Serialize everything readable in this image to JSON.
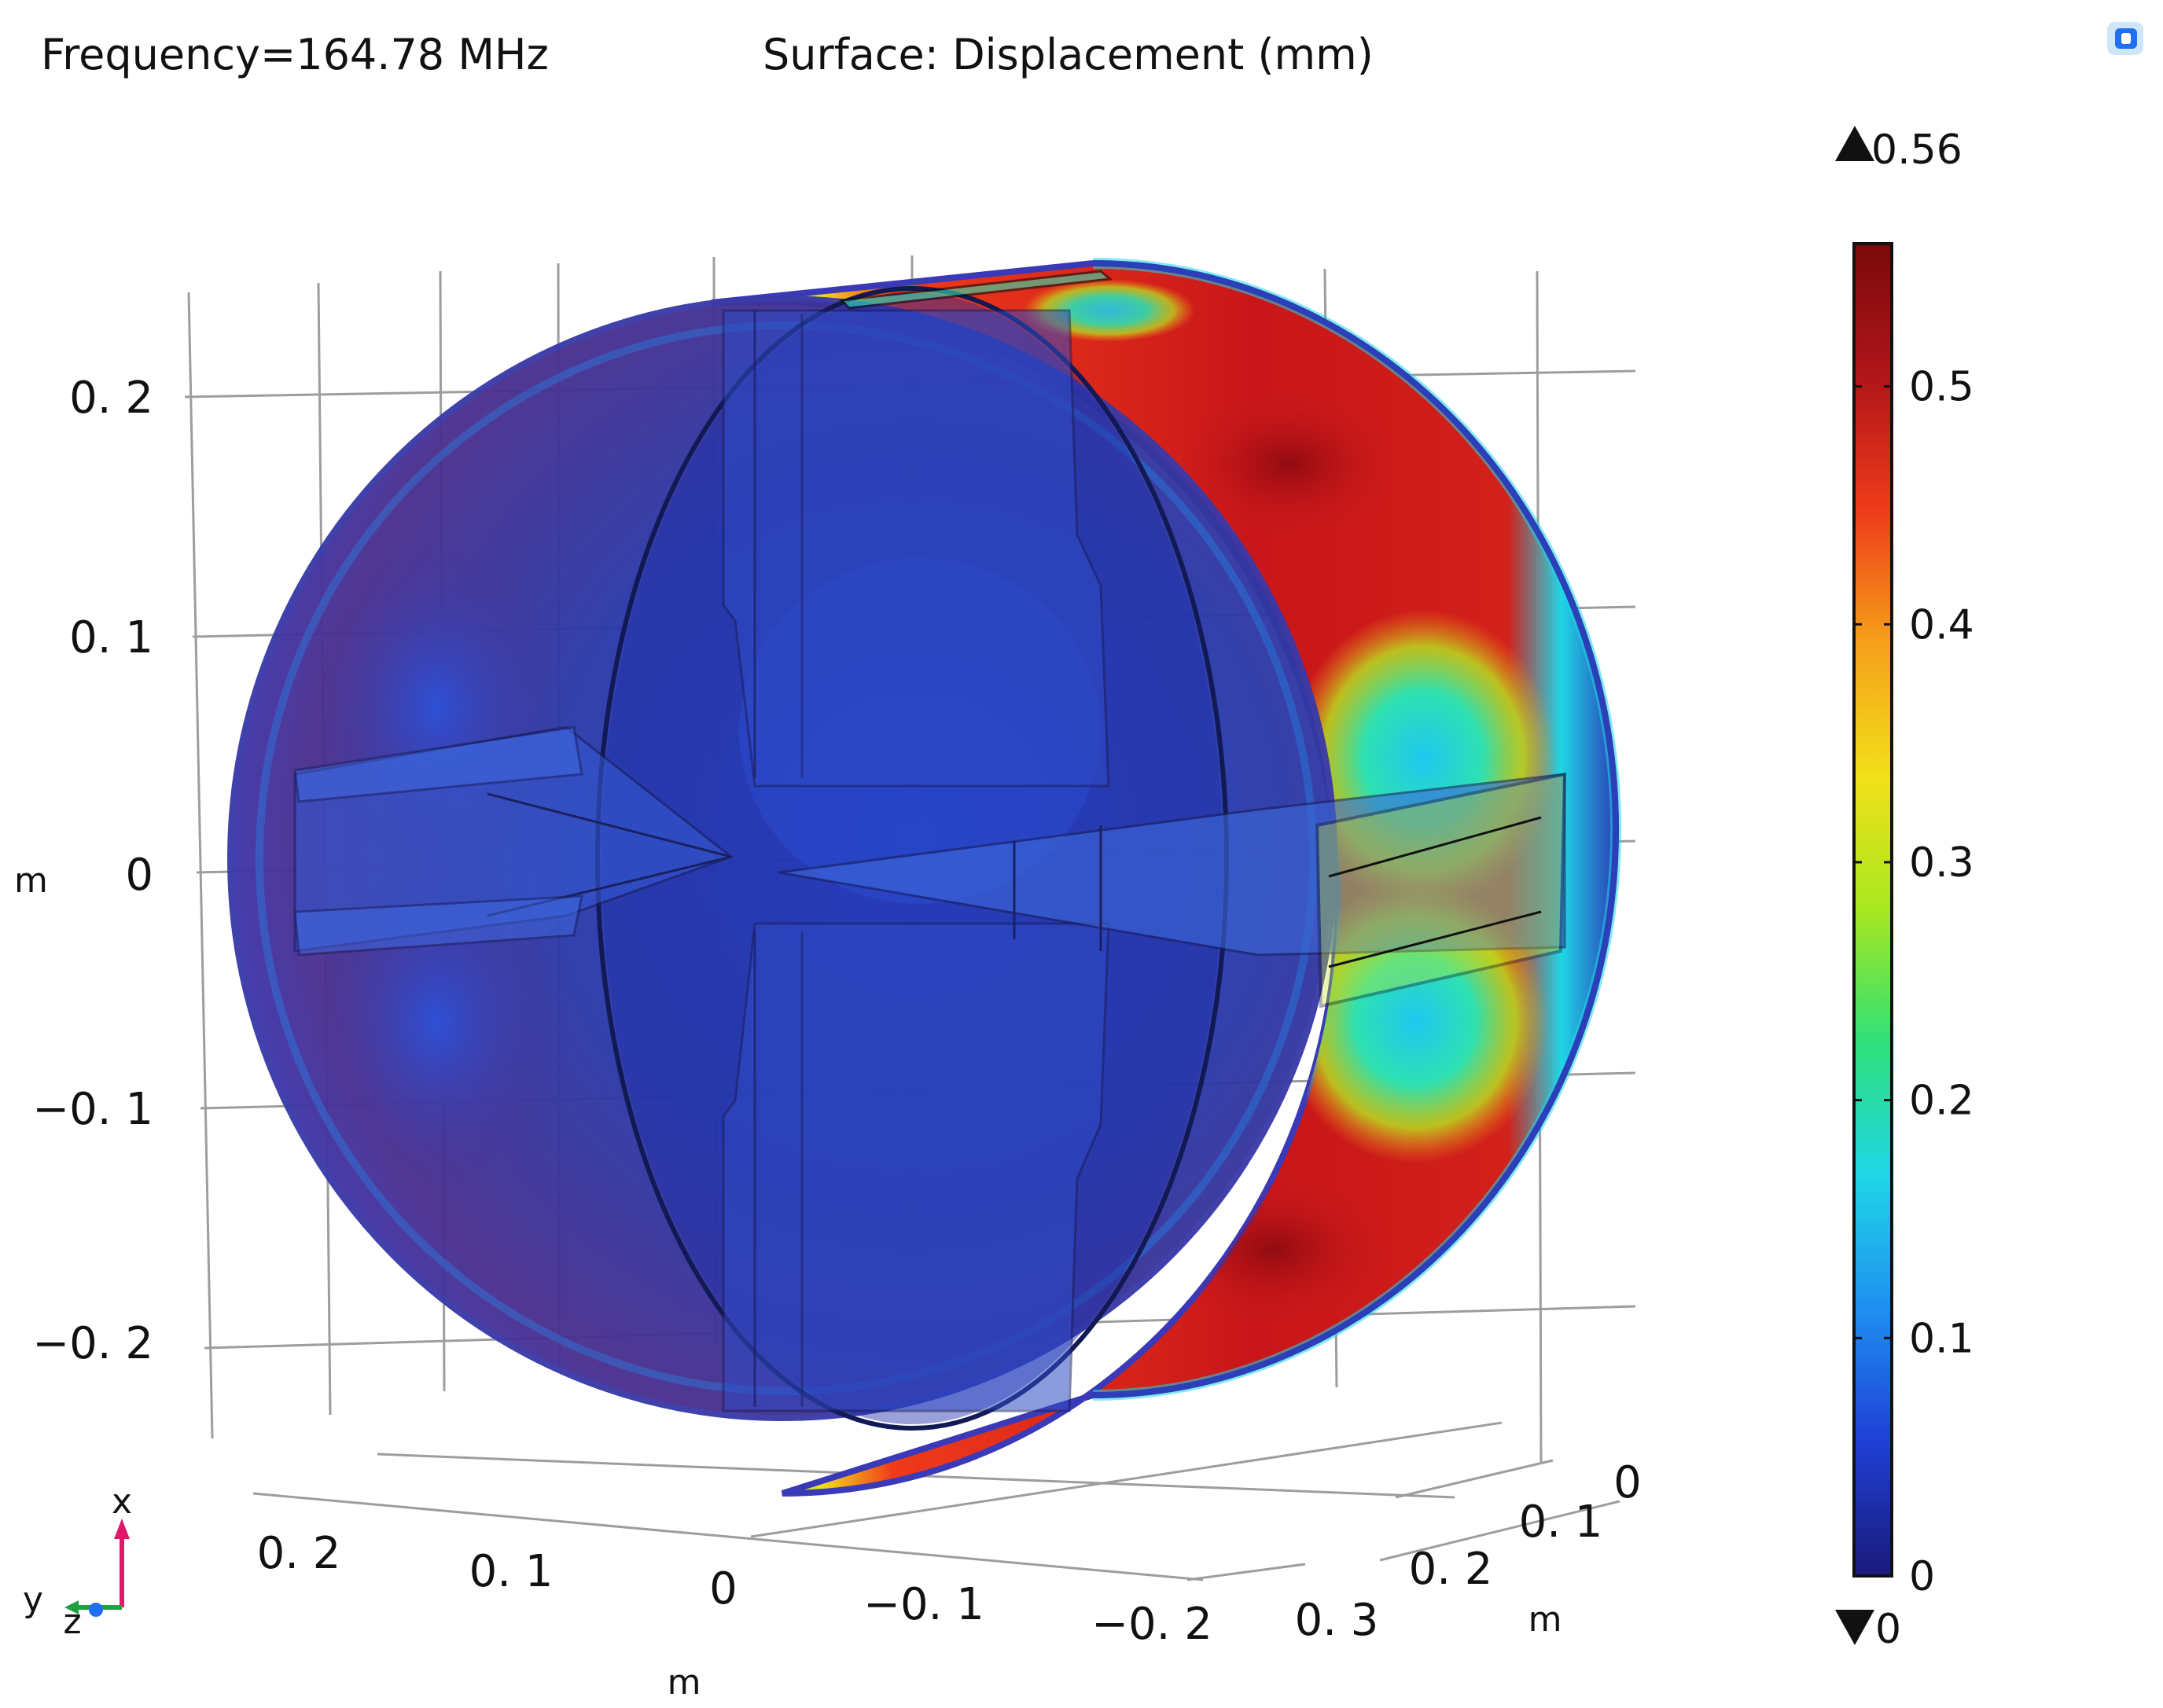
{
  "header": {
    "frequency_label": "Frequency=164.78 MHz",
    "surface_label": "Surface: Displacement (mm)"
  },
  "axes": {
    "vertical": {
      "unit": "m",
      "ticks": [
        "0. 2",
        "0. 1",
        "0",
        "−0. 1",
        "−0. 2"
      ]
    },
    "horizontal_front": {
      "unit": "m",
      "ticks": [
        "0. 2",
        "0. 1",
        "0",
        "−0. 1",
        "−0. 2"
      ]
    },
    "depth": {
      "unit": "m",
      "ticks": [
        "0",
        "0. 1",
        "0. 2",
        "0. 3"
      ]
    }
  },
  "colorbar": {
    "max_marker": "0.56",
    "min_marker": "0",
    "ticks": [
      "0.5",
      "0.4",
      "0.3",
      "0.2",
      "0.1",
      "0"
    ],
    "range": [
      0,
      0.56
    ],
    "colormap": [
      "#1a1a7a",
      "#1f3fd6",
      "#1f8ff0",
      "#1fd6e6",
      "#2fe07a",
      "#a8e81f",
      "#f2e01a",
      "#f5a01a",
      "#ef3b1a",
      "#b0151a",
      "#7a0a0a"
    ]
  },
  "triad": {
    "x_label": "x",
    "y_label": "y",
    "z_label": "z"
  },
  "colors": {
    "shell_dark": "#5a2a8a",
    "shell_blue": "#2a3fb8",
    "hot": "#c8161a",
    "grid": "#8a8a8a"
  }
}
